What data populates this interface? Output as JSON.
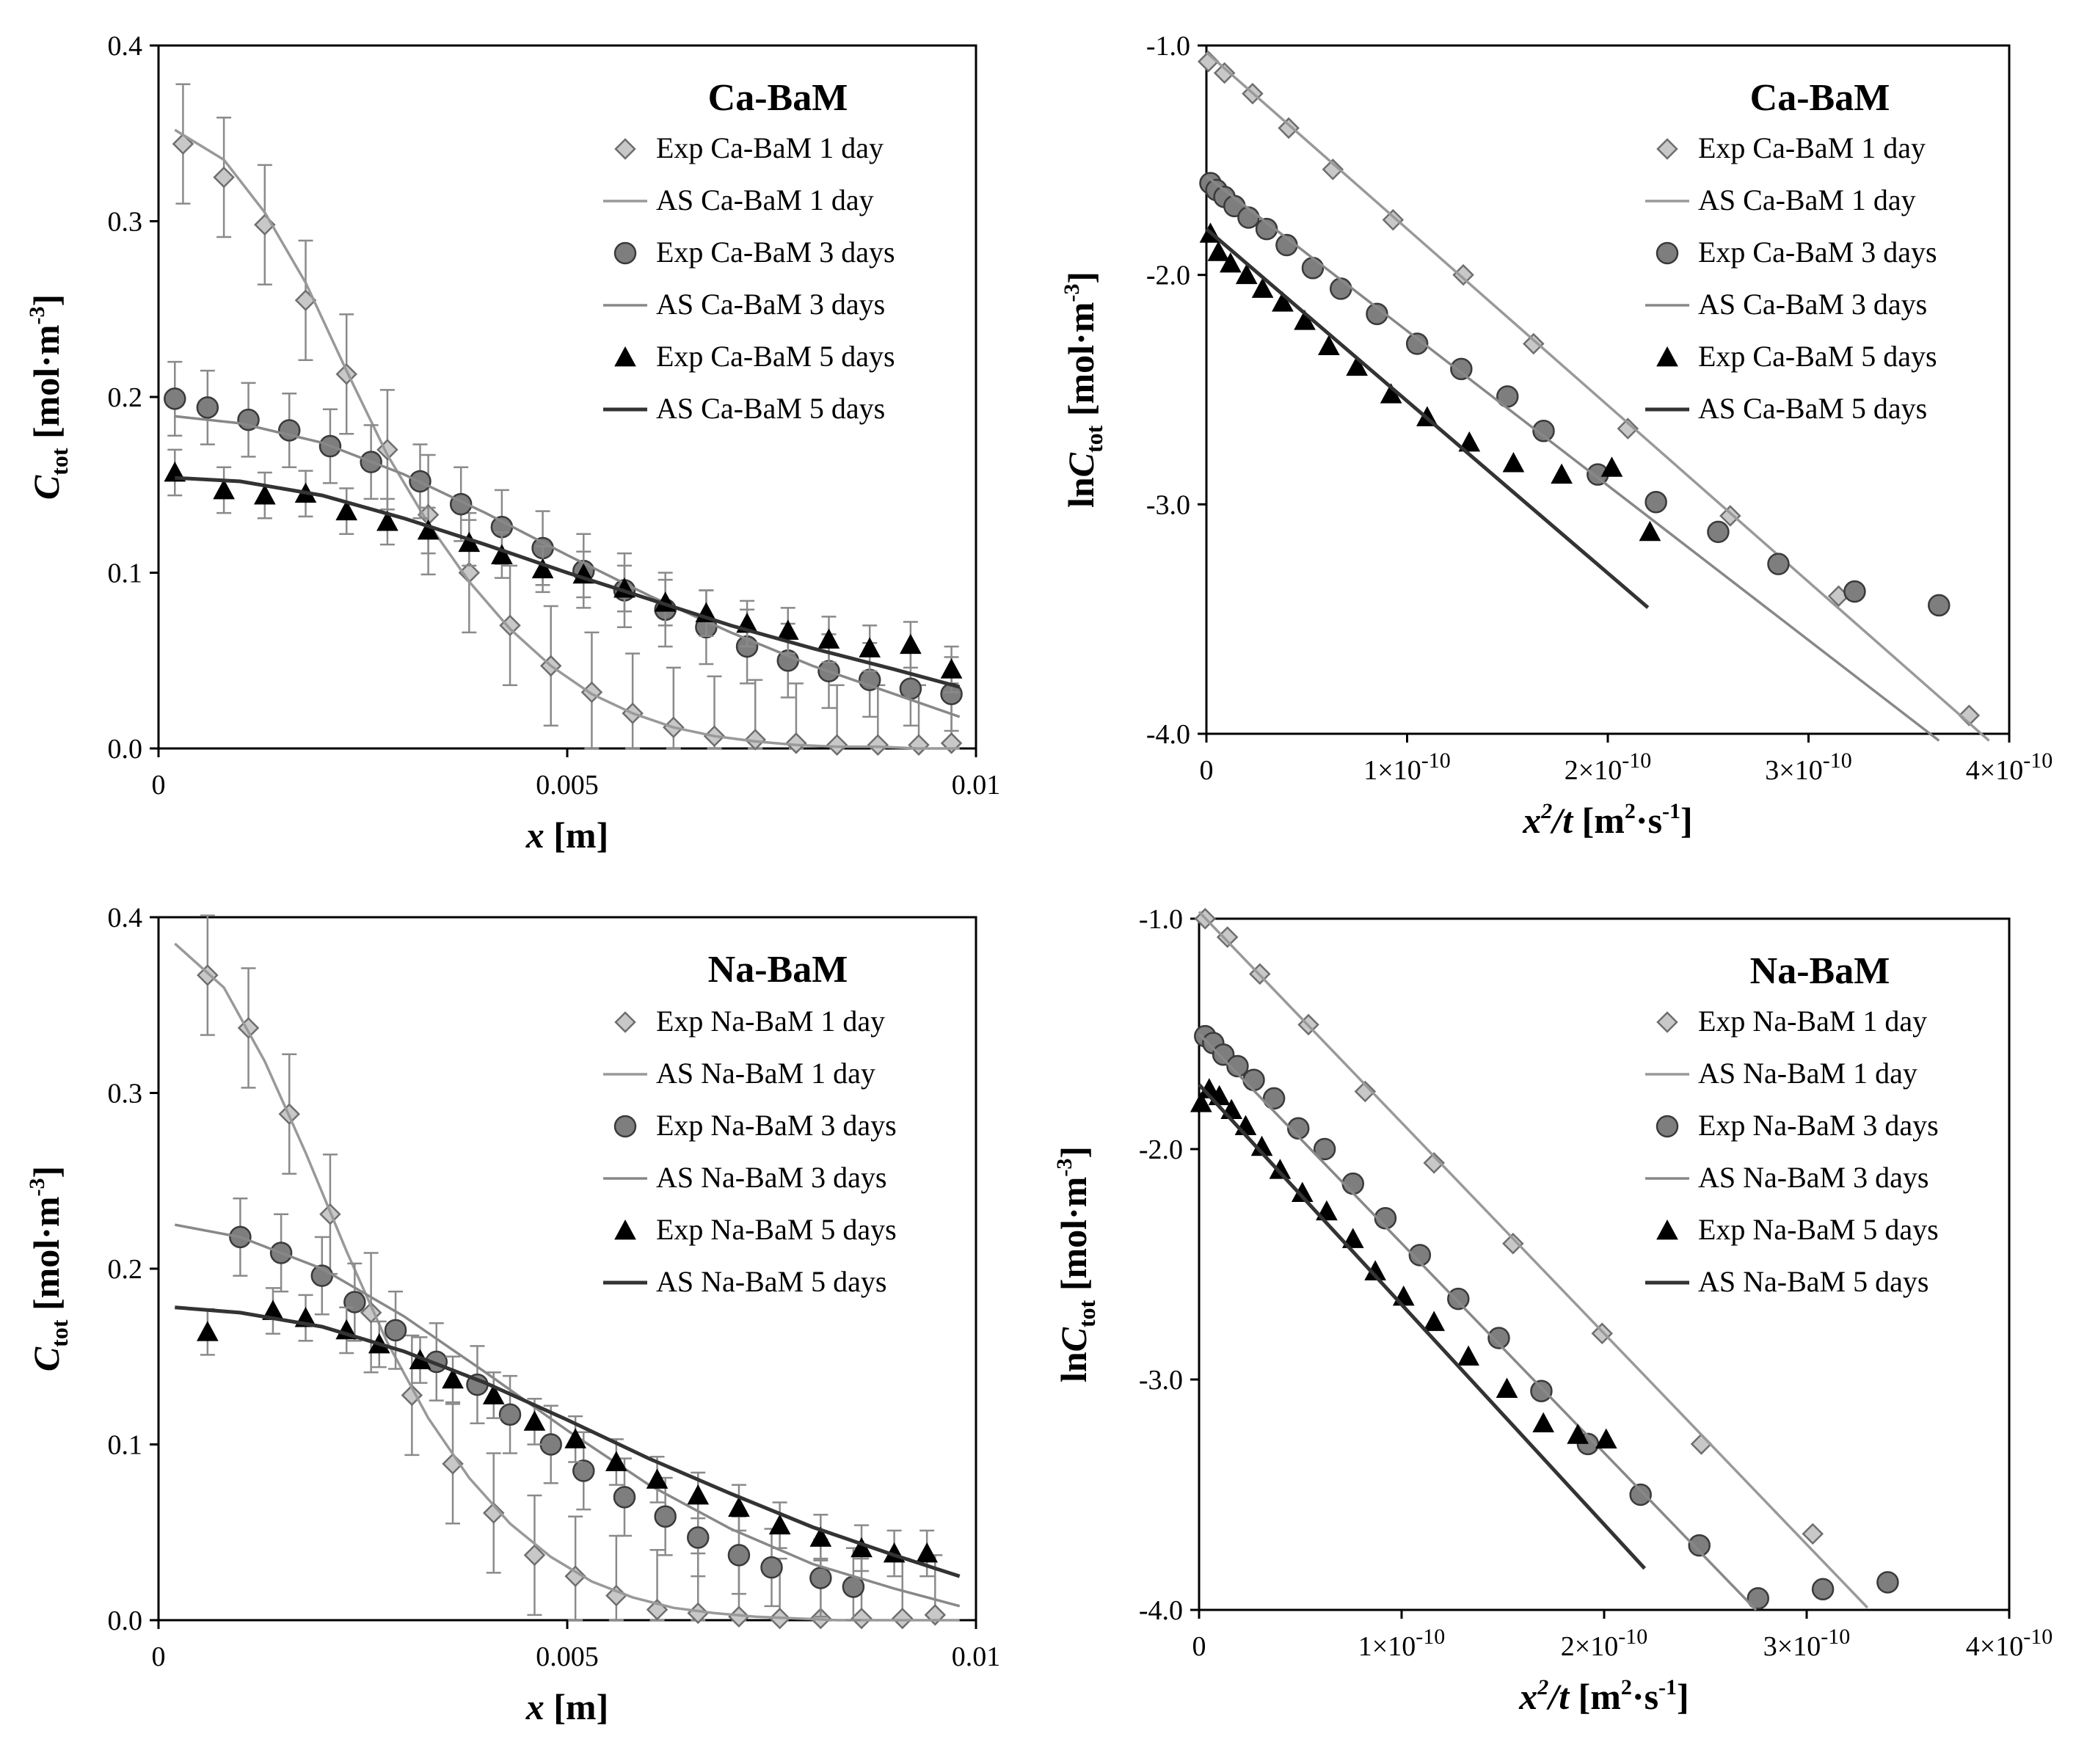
{
  "chart_data": [
    {
      "type": "line",
      "title": "Ca-BaM",
      "xlabel": "x [m]",
      "ylabel": "Ctot [mol·m-3]",
      "xlim": [
        0,
        0.01
      ],
      "ylim": [
        0,
        0.4
      ],
      "x_ticks": [
        0,
        0.005,
        0.01
      ],
      "x_tick_labels": [
        "0",
        "0.005",
        "0.01"
      ],
      "y_ticks": [
        0,
        0.1,
        0.2,
        0.3,
        0.4
      ],
      "y_tick_labels": [
        "0.0",
        "0.1",
        "0.2",
        "0.3",
        "0.4"
      ],
      "series": [
        {
          "name": "Exp Ca-BaM 1 day",
          "kind": "points",
          "marker": "diamond",
          "err": 0.034,
          "x": [
            0.0003,
            0.0008,
            0.0013,
            0.0018,
            0.0023,
            0.0028,
            0.0033,
            0.0038,
            0.0043,
            0.0048,
            0.0053,
            0.0058,
            0.0063,
            0.0068,
            0.0073,
            0.0078,
            0.0083,
            0.0088,
            0.0093,
            0.0097
          ],
          "y": [
            0.344,
            0.325,
            0.298,
            0.255,
            0.213,
            0.17,
            0.133,
            0.1,
            0.07,
            0.047,
            0.032,
            0.02,
            0.012,
            0.007,
            0.005,
            0.003,
            0.002,
            0.002,
            0.002,
            0.003
          ]
        },
        {
          "name": "AS Ca-BaM 1 day",
          "kind": "line",
          "color": "#999999",
          "x": [
            0.0002,
            0.0008,
            0.0013,
            0.0018,
            0.0023,
            0.0028,
            0.0033,
            0.0038,
            0.0043,
            0.0048,
            0.0053,
            0.0058,
            0.0063,
            0.0068,
            0.0073,
            0.0078,
            0.0083,
            0.0088,
            0.0093,
            0.0098
          ],
          "y": [
            0.352,
            0.335,
            0.305,
            0.265,
            0.215,
            0.167,
            0.128,
            0.095,
            0.068,
            0.047,
            0.031,
            0.02,
            0.012,
            0.007,
            0.004,
            0.002,
            0.001,
            0.001,
            0.0,
            0.0
          ]
        },
        {
          "name": "Exp Ca-BaM 3 days",
          "kind": "points",
          "marker": "circle",
          "err": 0.021,
          "x": [
            0.0002,
            0.0006,
            0.0011,
            0.0016,
            0.0021,
            0.0026,
            0.0032,
            0.0037,
            0.0042,
            0.0047,
            0.0052,
            0.0057,
            0.0062,
            0.0067,
            0.0072,
            0.0077,
            0.0082,
            0.0087,
            0.0092,
            0.0097
          ],
          "y": [
            0.199,
            0.194,
            0.187,
            0.181,
            0.172,
            0.163,
            0.152,
            0.139,
            0.126,
            0.114,
            0.101,
            0.09,
            0.079,
            0.069,
            0.058,
            0.05,
            0.044,
            0.039,
            0.034,
            0.031
          ]
        },
        {
          "name": "AS Ca-BaM 3 days",
          "kind": "line",
          "color": "#888888",
          "x": [
            0.0002,
            0.001,
            0.002,
            0.003,
            0.004,
            0.005,
            0.006,
            0.007,
            0.008,
            0.009,
            0.0098
          ],
          "y": [
            0.189,
            0.185,
            0.174,
            0.156,
            0.134,
            0.11,
            0.087,
            0.066,
            0.047,
            0.031,
            0.018
          ]
        },
        {
          "name": "Exp Ca-BaM 5 days",
          "kind": "points",
          "marker": "triangle",
          "err": 0.013,
          "x": [
            0.0002,
            0.0008,
            0.0013,
            0.0018,
            0.0023,
            0.0028,
            0.0033,
            0.0038,
            0.0042,
            0.0047,
            0.0052,
            0.0057,
            0.0062,
            0.0067,
            0.0072,
            0.0077,
            0.0082,
            0.0087,
            0.0092,
            0.0097
          ],
          "y": [
            0.157,
            0.147,
            0.144,
            0.145,
            0.135,
            0.129,
            0.124,
            0.117,
            0.11,
            0.102,
            0.099,
            0.091,
            0.083,
            0.077,
            0.071,
            0.067,
            0.062,
            0.057,
            0.059,
            0.045
          ]
        },
        {
          "name": "AS Ca-BaM 5 days",
          "kind": "line",
          "color": "#333333",
          "x": [
            0.0002,
            0.001,
            0.002,
            0.003,
            0.004,
            0.005,
            0.006,
            0.007,
            0.008,
            0.009,
            0.0098
          ],
          "y": [
            0.154,
            0.152,
            0.144,
            0.131,
            0.116,
            0.1,
            0.085,
            0.07,
            0.057,
            0.045,
            0.035
          ]
        }
      ]
    },
    {
      "type": "scatter",
      "title": "Ca-BaM",
      "xlabel": "x2/t [m2·s-1]",
      "ylabel": "lnCtot [mol·m-3]",
      "xlim": [
        0,
        4e-10
      ],
      "ylim": [
        -4.0,
        -1.0
      ],
      "x_ticks": [
        0,
        1e-10,
        2e-10,
        3e-10,
        4e-10
      ],
      "x_tick_labels": [
        "0",
        "1×10-10",
        "2×10-10",
        "3×10-10",
        "4×10-10"
      ],
      "y_ticks": [
        -1.0,
        -2.0,
        -3.0,
        -4.0
      ],
      "y_tick_labels": [
        "-1.0",
        "-2.0",
        "-3.0",
        "-4.0"
      ],
      "series": [
        {
          "name": "Exp Ca-BaM 1 day",
          "kind": "points",
          "marker": "diamond",
          "x": [
            1e-12,
            9e-12,
            2.3e-11,
            4.1e-11,
            6.3e-11,
            9.3e-11,
            1.28e-10,
            1.63e-10,
            2.1e-10,
            2.61e-10,
            3.15e-10,
            3.8e-10
          ],
          "y": [
            -1.07,
            -1.12,
            -1.21,
            -1.36,
            -1.54,
            -1.76,
            -2.0,
            -2.3,
            -2.67,
            -3.05,
            -3.4,
            -3.92
          ]
        },
        {
          "name": "AS Ca-BaM 1 day",
          "kind": "line",
          "color": "#999999",
          "x": [
            0,
            3.9e-10
          ],
          "y": [
            -1.03,
            -4.03
          ]
        },
        {
          "name": "Exp Ca-BaM 3 days",
          "kind": "points",
          "marker": "circle",
          "x": [
            2e-12,
            5e-12,
            9e-12,
            1.4e-11,
            2.1e-11,
            3e-11,
            4e-11,
            5.3e-11,
            6.7e-11,
            8.5e-11,
            1.05e-10,
            1.27e-10,
            1.5e-10,
            1.68e-10,
            1.95e-10,
            2.24e-10,
            2.55e-10,
            2.85e-10,
            3.23e-10,
            3.65e-10
          ],
          "y": [
            -1.6,
            -1.63,
            -1.66,
            -1.7,
            -1.75,
            -1.8,
            -1.87,
            -1.97,
            -2.06,
            -2.17,
            -2.3,
            -2.41,
            -2.53,
            -2.68,
            -2.87,
            -2.99,
            -3.12,
            -3.26,
            -3.38,
            -3.44
          ]
        },
        {
          "name": "AS Ca-BaM 3 days",
          "kind": "line",
          "color": "#888888",
          "x": [
            0,
            3.65e-10
          ],
          "y": [
            -1.57,
            -4.03
          ]
        },
        {
          "name": "Exp Ca-BaM 5 days",
          "kind": "points",
          "marker": "triangle",
          "x": [
            2e-12,
            6e-12,
            1.2e-11,
            2e-11,
            2.8e-11,
            3.8e-11,
            4.9e-11,
            6.1e-11,
            7.5e-11,
            9.2e-11,
            1.1e-10,
            1.31e-10,
            1.53e-10,
            1.77e-10,
            2.02e-10,
            2.21e-10
          ],
          "y": [
            -1.82,
            -1.9,
            -1.95,
            -2.0,
            -2.06,
            -2.12,
            -2.2,
            -2.31,
            -2.4,
            -2.52,
            -2.62,
            -2.73,
            -2.82,
            -2.87,
            -2.84,
            -3.12
          ]
        },
        {
          "name": "AS Ca-BaM 5 days",
          "kind": "line",
          "color": "#333333",
          "x": [
            0,
            2.2e-10
          ],
          "y": [
            -1.8,
            -3.45
          ]
        }
      ]
    },
    {
      "type": "line",
      "title": "Na-BaM",
      "xlabel": "x [m]",
      "ylabel": "Ctot [mol·m-3]",
      "xlim": [
        0,
        0.01
      ],
      "ylim": [
        0,
        0.4
      ],
      "x_ticks": [
        0,
        0.005,
        0.01
      ],
      "x_tick_labels": [
        "0",
        "0.005",
        "0.01"
      ],
      "y_ticks": [
        0,
        0.1,
        0.2,
        0.3,
        0.4
      ],
      "y_tick_labels": [
        "0.0",
        "0.1",
        "0.2",
        "0.3",
        "0.4"
      ],
      "series": [
        {
          "name": "Exp Na-BaM 1 day",
          "kind": "points",
          "marker": "diamond",
          "err": 0.034,
          "x": [
            0.0006,
            0.0011,
            0.0016,
            0.0021,
            0.0026,
            0.0031,
            0.0036,
            0.0041,
            0.0046,
            0.0051,
            0.0056,
            0.0061,
            0.0066,
            0.0071,
            0.0076,
            0.0081,
            0.0086,
            0.0091,
            0.0095
          ],
          "y": [
            0.367,
            0.337,
            0.288,
            0.231,
            0.175,
            0.128,
            0.089,
            0.061,
            0.037,
            0.025,
            0.014,
            0.006,
            0.004,
            0.002,
            0.001,
            0.001,
            0.001,
            0.001,
            0.003
          ]
        },
        {
          "name": "AS Na-BaM 1 day",
          "kind": "line",
          "color": "#999999",
          "x": [
            0.0002,
            0.0008,
            0.0013,
            0.0018,
            0.0023,
            0.0028,
            0.0033,
            0.0038,
            0.0043,
            0.0048,
            0.0053,
            0.0058,
            0.0063,
            0.0068,
            0.0073,
            0.0078,
            0.0083,
            0.0088,
            0.0093,
            0.0098
          ],
          "y": [
            0.385,
            0.36,
            0.318,
            0.266,
            0.21,
            0.158,
            0.115,
            0.081,
            0.055,
            0.036,
            0.022,
            0.013,
            0.007,
            0.004,
            0.002,
            0.001,
            0.0,
            0.0,
            0.0,
            0.0
          ]
        },
        {
          "name": "Exp Na-BaM 3 days",
          "kind": "points",
          "marker": "circle",
          "err": 0.022,
          "x": [
            0.001,
            0.0015,
            0.002,
            0.0024,
            0.0029,
            0.0034,
            0.0039,
            0.0043,
            0.0048,
            0.0052,
            0.0057,
            0.0062,
            0.0066,
            0.0071,
            0.0075,
            0.0081,
            0.0085
          ],
          "y": [
            0.218,
            0.209,
            0.196,
            0.181,
            0.165,
            0.147,
            0.134,
            0.117,
            0.1,
            0.085,
            0.07,
            0.059,
            0.047,
            0.037,
            0.03,
            0.024,
            0.019
          ]
        },
        {
          "name": "AS Na-BaM 3 days",
          "kind": "line",
          "color": "#888888",
          "x": [
            0.0002,
            0.001,
            0.002,
            0.003,
            0.004,
            0.005,
            0.006,
            0.007,
            0.008,
            0.009,
            0.0098
          ],
          "y": [
            0.225,
            0.218,
            0.2,
            0.173,
            0.141,
            0.108,
            0.077,
            0.052,
            0.032,
            0.018,
            0.008
          ]
        },
        {
          "name": "Exp Na-BaM 5 days",
          "kind": "points",
          "marker": "triangle",
          "err": 0.013,
          "x": [
            0.0006,
            0.0014,
            0.0018,
            0.0023,
            0.0027,
            0.0032,
            0.0036,
            0.0041,
            0.0046,
            0.0051,
            0.0056,
            0.0061,
            0.0066,
            0.0071,
            0.0076,
            0.0081,
            0.0086,
            0.009,
            0.0094
          ],
          "y": [
            0.164,
            0.176,
            0.172,
            0.165,
            0.157,
            0.148,
            0.137,
            0.128,
            0.113,
            0.103,
            0.09,
            0.08,
            0.071,
            0.064,
            0.054,
            0.047,
            0.041,
            0.038,
            0.038
          ]
        },
        {
          "name": "AS Na-BaM 5 days",
          "kind": "line",
          "color": "#333333",
          "x": [
            0.0002,
            0.001,
            0.002,
            0.003,
            0.004,
            0.005,
            0.006,
            0.007,
            0.008,
            0.009,
            0.0098
          ],
          "y": [
            0.178,
            0.175,
            0.167,
            0.153,
            0.135,
            0.114,
            0.092,
            0.072,
            0.053,
            0.037,
            0.025
          ]
        }
      ]
    },
    {
      "type": "scatter",
      "title": "Na-BaM",
      "xlabel": "x2/t [m2·s-1]",
      "ylabel": "lnCtot [mol·m-3]",
      "xlim": [
        0,
        4e-10
      ],
      "ylim": [
        -4.0,
        -1.0
      ],
      "x_ticks": [
        0,
        1e-10,
        2e-10,
        3e-10,
        4e-10
      ],
      "x_tick_labels": [
        "0",
        "1×10-10",
        "2×10-10",
        "3×10-10",
        "4×10-10"
      ],
      "y_ticks": [
        -1.0,
        -2.0,
        -3.0,
        -4.0
      ],
      "y_tick_labels": [
        "-1.0",
        "-2.0",
        "-3.0",
        "-4.0"
      ],
      "series": [
        {
          "name": "Exp Na-BaM 1 day",
          "kind": "points",
          "marker": "diamond",
          "x": [
            3e-12,
            1.4e-11,
            3e-11,
            5.4e-11,
            8.2e-11,
            1.16e-10,
            1.55e-10,
            1.99e-10,
            2.48e-10,
            3.03e-10
          ],
          "y": [
            -1.0,
            -1.08,
            -1.24,
            -1.46,
            -1.75,
            -2.06,
            -2.41,
            -2.8,
            -3.28,
            -3.67
          ]
        },
        {
          "name": "AS Na-BaM 1 day",
          "kind": "line",
          "color": "#999999",
          "x": [
            0,
            3.3e-10
          ],
          "y": [
            -0.97,
            -3.99
          ]
        },
        {
          "name": "Exp Na-BaM 3 days",
          "kind": "points",
          "marker": "circle",
          "x": [
            3e-12,
            7e-12,
            1.2e-11,
            1.9e-11,
            2.7e-11,
            3.7e-11,
            4.9e-11,
            6.2e-11,
            7.6e-11,
            9.2e-11,
            1.09e-10,
            1.28e-10,
            1.48e-10,
            1.69e-10,
            1.92e-10,
            2.18e-10,
            2.47e-10,
            2.76e-10,
            3.08e-10,
            3.4e-10
          ],
          "y": [
            -1.51,
            -1.54,
            -1.59,
            -1.64,
            -1.7,
            -1.78,
            -1.91,
            -2.0,
            -2.15,
            -2.3,
            -2.46,
            -2.65,
            -2.82,
            -3.05,
            -3.28,
            -3.5,
            -3.72,
            -3.95,
            -3.91,
            -3.88
          ]
        },
        {
          "name": "AS Na-BaM 3 days",
          "kind": "line",
          "color": "#888888",
          "x": [
            0,
            2.75e-10
          ],
          "y": [
            -1.5,
            -4.0
          ]
        },
        {
          "name": "Exp Na-BaM 5 days",
          "kind": "points",
          "marker": "triangle",
          "x": [
            1e-12,
            5e-12,
            1e-11,
            1.6e-11,
            2.3e-11,
            3.1e-11,
            4e-11,
            5.1e-11,
            6.3e-11,
            7.6e-11,
            8.7e-11,
            1.01e-10,
            1.16e-10,
            1.33e-10,
            1.52e-10,
            1.7e-10,
            1.87e-10,
            2.01e-10
          ],
          "y": [
            -1.8,
            -1.74,
            -1.77,
            -1.83,
            -1.9,
            -1.99,
            -2.09,
            -2.19,
            -2.27,
            -2.39,
            -2.53,
            -2.64,
            -2.75,
            -2.9,
            -3.04,
            -3.19,
            -3.24,
            -3.26
          ]
        },
        {
          "name": "AS Na-BaM 5 days",
          "kind": "line",
          "color": "#333333",
          "x": [
            0,
            2.2e-10
          ],
          "y": [
            -1.72,
            -3.82
          ]
        }
      ]
    }
  ]
}
